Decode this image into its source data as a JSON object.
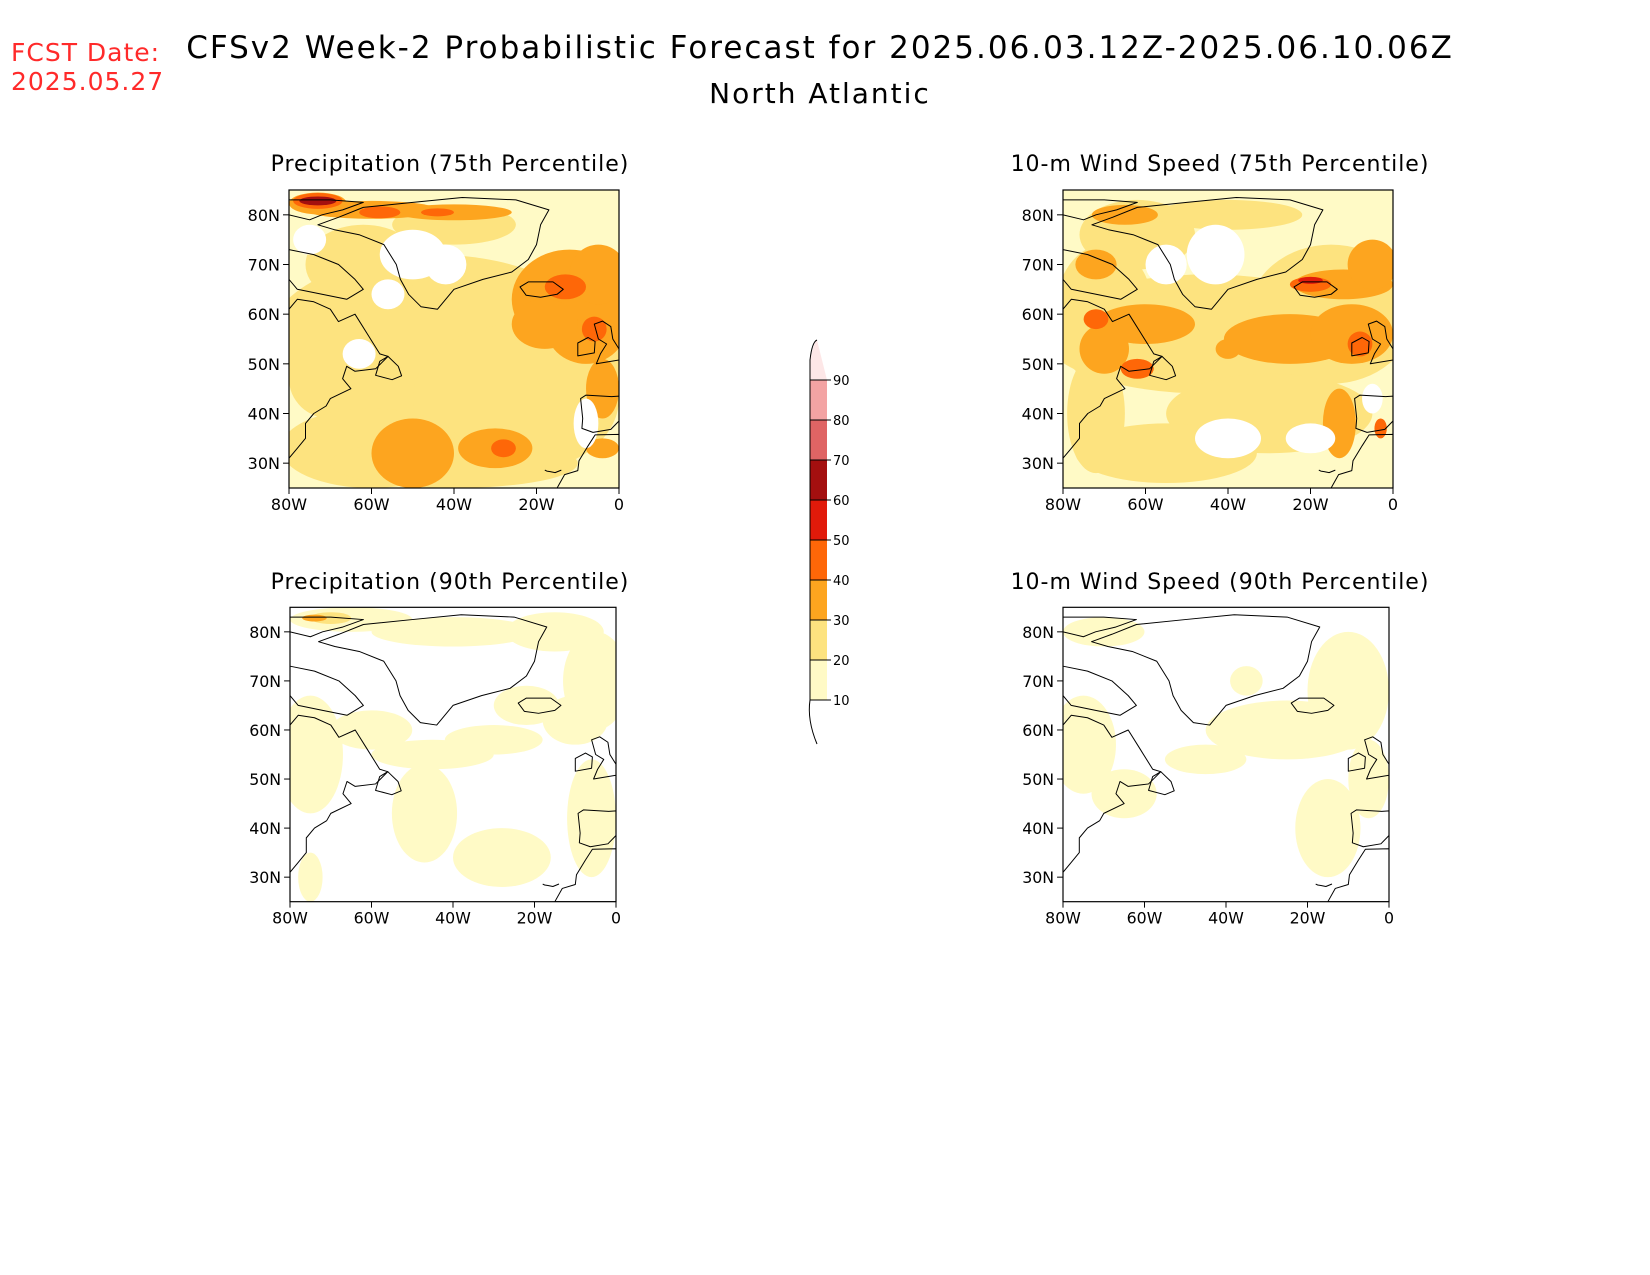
{
  "header": {
    "fcst_label": "FCST Date:",
    "fcst_date": "2025.05.27",
    "title": "CFSv2 Week-2 Probabilistic Forecast for 2025.06.03.12Z-2025.06.10.06Z",
    "region": "North Atlantic"
  },
  "axes": {
    "x_ticks": [
      "80W",
      "60W",
      "40W",
      "20W",
      "0"
    ],
    "y_ticks": [
      "80N",
      "70N",
      "60N",
      "50N",
      "40N",
      "30N"
    ]
  },
  "colors": {
    "lt10": "#ffffff",
    "c10": "#fffac6",
    "c20": "#fde37f",
    "c30": "#fda51f",
    "c40": "#fe6708",
    "c50": "#e11a0a",
    "c60": "#a40f0f",
    "c70": "#df6464",
    "c80": "#f3a3a3",
    "c90": "#fde7e7",
    "coast": "#000000"
  },
  "colorbar": {
    "levels": [
      "10",
      "20",
      "30",
      "40",
      "50",
      "60",
      "70",
      "80",
      "90"
    ]
  },
  "panels": [
    {
      "id": "precip75",
      "title": "Precipitation (75th Percentile)",
      "level": "high"
    },
    {
      "id": "wind75",
      "title": "10-m Wind Speed (75th Percentile)",
      "level": "high"
    },
    {
      "id": "precip90",
      "title": "Precipitation (90th Percentile)",
      "level": "low"
    },
    {
      "id": "wind90",
      "title": "10-m Wind Speed (90th Percentile)",
      "level": "low"
    }
  ]
}
